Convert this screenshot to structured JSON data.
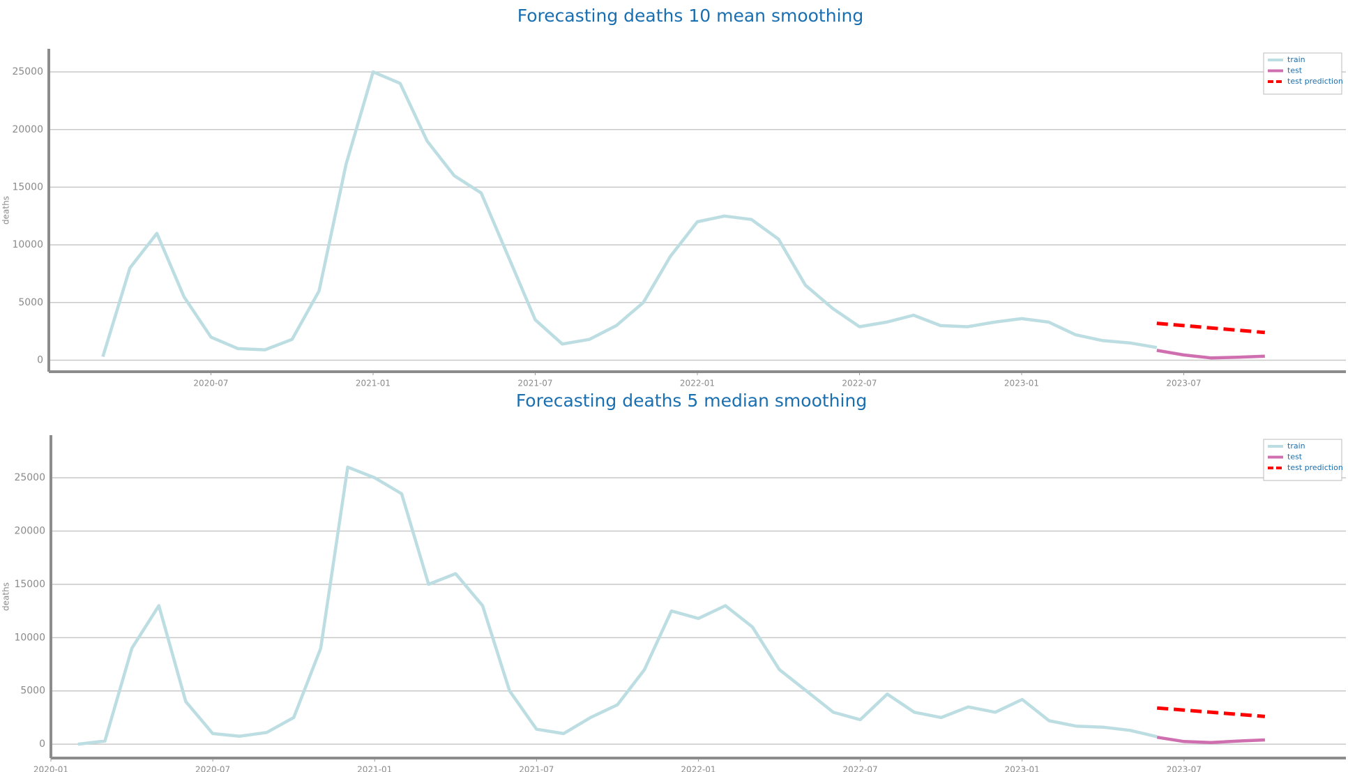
{
  "chart_data": [
    {
      "type": "line",
      "title": "Forecasting deaths 10 mean smoothing",
      "y_label": "deaths",
      "xlim": [
        "2020-01",
        "2024-01"
      ],
      "xticks": [
        "2020-07",
        "2021-01",
        "2021-07",
        "2022-01",
        "2022-07",
        "2023-01",
        "2023-07"
      ],
      "ylim": [
        -1000,
        27000
      ],
      "yticks": [
        0,
        5000,
        10000,
        15000,
        20000,
        25000
      ],
      "grid": "y",
      "legend": "upper right",
      "series": [
        {
          "name": "train",
          "color": "#bcdde1",
          "linestyle": "solid",
          "x": [
            "2020-03",
            "2020-04",
            "2020-05",
            "2020-06",
            "2020-07",
            "2020-08",
            "2020-09",
            "2020-10",
            "2020-11",
            "2020-12",
            "2021-01",
            "2021-02",
            "2021-03",
            "2021-04",
            "2021-05",
            "2021-06",
            "2021-07",
            "2021-08",
            "2021-09",
            "2021-10",
            "2021-11",
            "2021-12",
            "2022-01",
            "2022-02",
            "2022-03",
            "2022-04",
            "2022-05",
            "2022-06",
            "2022-07",
            "2022-08",
            "2022-09",
            "2022-10",
            "2022-11",
            "2022-12",
            "2023-01",
            "2023-02",
            "2023-03",
            "2023-04",
            "2023-05",
            "2023-06"
          ],
          "values": [
            300,
            8000,
            11000,
            5500,
            2000,
            1000,
            900,
            1800,
            6000,
            17000,
            25000,
            24000,
            19000,
            16000,
            14500,
            9000,
            3500,
            1400,
            1800,
            3000,
            5000,
            9000,
            12000,
            12500,
            12200,
            10500,
            6500,
            4500,
            2900,
            3300,
            3900,
            3000,
            2900,
            3300,
            3600,
            3300,
            2200,
            1700,
            1500,
            1100
          ]
        },
        {
          "name": "test",
          "color": "#cf6fb0",
          "linestyle": "solid",
          "x": [
            "2023-06",
            "2023-07",
            "2023-08",
            "2023-09",
            "2023-10"
          ],
          "values": [
            850,
            450,
            200,
            250,
            350
          ]
        },
        {
          "name": "test prediction",
          "color": "#ff0000",
          "linestyle": "dashed",
          "x": [
            "2023-06",
            "2023-07",
            "2023-08",
            "2023-09",
            "2023-10"
          ],
          "values": [
            3200,
            3000,
            2800,
            2600,
            2400
          ]
        }
      ]
    },
    {
      "type": "line",
      "title": "Forecasting deaths 5 median smoothing",
      "y_label": "deaths",
      "xlim": [
        "2020-01",
        "2024-01"
      ],
      "xticks": [
        "2020-01",
        "2020-07",
        "2021-01",
        "2021-07",
        "2022-01",
        "2022-07",
        "2023-01",
        "2023-07"
      ],
      "ylim": [
        -1300,
        29000
      ],
      "yticks": [
        0,
        5000,
        10000,
        15000,
        20000,
        25000
      ],
      "grid": "y",
      "legend": "upper right",
      "series": [
        {
          "name": "train",
          "color": "#bcdde1",
          "linestyle": "solid",
          "x": [
            "2020-02",
            "2020-03",
            "2020-04",
            "2020-05",
            "2020-06",
            "2020-07",
            "2020-08",
            "2020-09",
            "2020-10",
            "2020-11",
            "2020-12",
            "2021-01",
            "2021-02",
            "2021-03",
            "2021-04",
            "2021-05",
            "2021-06",
            "2021-07",
            "2021-08",
            "2021-09",
            "2021-10",
            "2021-11",
            "2021-12",
            "2022-01",
            "2022-02",
            "2022-03",
            "2022-04",
            "2022-05",
            "2022-06",
            "2022-07",
            "2022-08",
            "2022-09",
            "2022-10",
            "2022-11",
            "2022-12",
            "2023-01",
            "2023-02",
            "2023-03",
            "2023-04",
            "2023-05",
            "2023-06"
          ],
          "values": [
            0,
            300,
            9000,
            13000,
            4000,
            1000,
            750,
            1100,
            2500,
            9000,
            26000,
            25000,
            23500,
            15000,
            16000,
            13000,
            5000,
            1400,
            1000,
            2500,
            3700,
            7000,
            12500,
            11800,
            13000,
            11000,
            7000,
            5000,
            3000,
            2300,
            4700,
            3000,
            2500,
            3500,
            3000,
            4200,
            2200,
            1700,
            1600,
            1300,
            700
          ]
        },
        {
          "name": "test",
          "color": "#cf6fb0",
          "linestyle": "solid",
          "x": [
            "2023-06",
            "2023-07",
            "2023-08",
            "2023-09",
            "2023-10"
          ],
          "values": [
            650,
            250,
            150,
            300,
            400
          ]
        },
        {
          "name": "test prediction",
          "color": "#ff0000",
          "linestyle": "dashed",
          "x": [
            "2023-06",
            "2023-07",
            "2023-08",
            "2023-09",
            "2023-10"
          ],
          "values": [
            3400,
            3200,
            3000,
            2800,
            2600
          ]
        }
      ]
    }
  ]
}
